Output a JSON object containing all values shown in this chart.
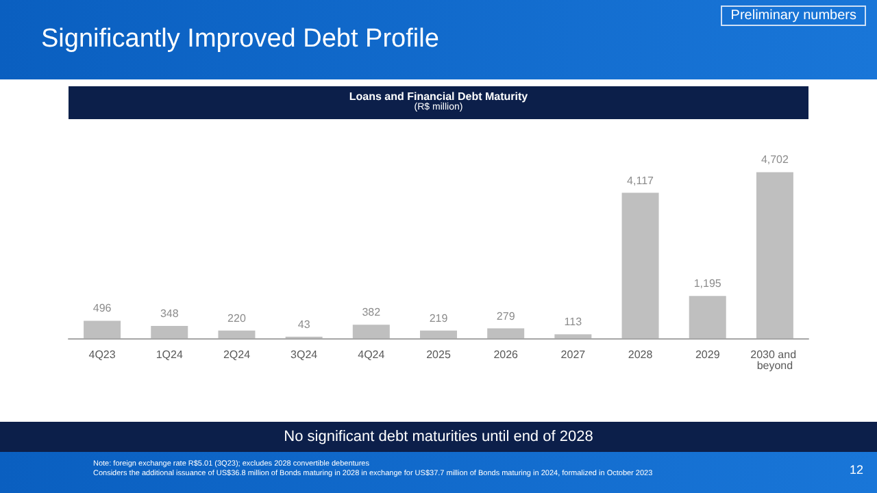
{
  "chart_data": {
    "type": "bar",
    "title": "Loans and Financial Debt Maturity",
    "subtitle": "(R$ million)",
    "categories": [
      "4Q23",
      "1Q24",
      "2Q24",
      "3Q24",
      "4Q24",
      "2025",
      "2026",
      "2027",
      "2028",
      "2029",
      "2030 and beyond"
    ],
    "values": [
      496,
      348,
      220,
      43,
      382,
      219,
      279,
      113,
      4117,
      1195,
      4702
    ],
    "value_labels": [
      "496",
      "348",
      "220",
      "43",
      "382",
      "219",
      "279",
      "113",
      "4,117",
      "1,195",
      "4,702"
    ],
    "color": "#bfbfbf",
    "tick_labels": "x",
    "annotations": [
      "Significantly Improved Debt Profile",
      "Preliminary numbers",
      "No significant debt maturities until end of 2028",
      "Note: foreign exchange rate R$5.01 (3Q23); excludes 2028 convertible debentures",
      "Considers the additional issuance of US$36.8 million of Bonds maturing in 2028 in exchange for US$37.7 million of Bonds maturing in 2024, formalized in October 2023",
      "12"
    ]
  }
}
